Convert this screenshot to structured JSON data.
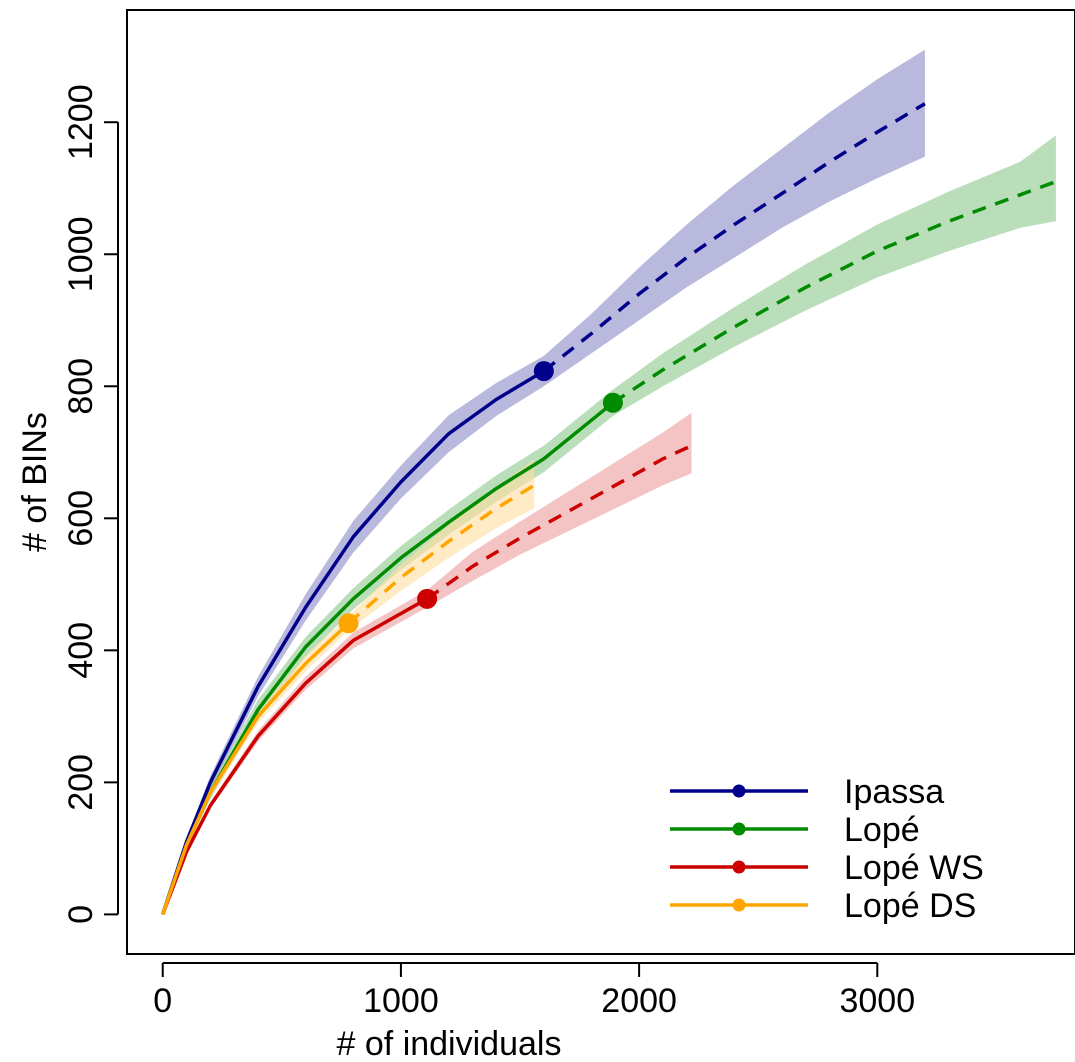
{
  "chart_data": {
    "type": "line",
    "title": "",
    "xlabel": "# of individuals",
    "ylabel": "# of BINs",
    "xlim": [
      -150,
      3830
    ],
    "ylim": [
      -60,
      1370
    ],
    "xticks": [
      0,
      1000,
      2000,
      3000
    ],
    "yticks": [
      0,
      200,
      400,
      600,
      800,
      1000,
      1200
    ],
    "grid": false,
    "legend_position": "bottom-right",
    "series": [
      {
        "name": "Ipassa",
        "color": "#00008B",
        "band_color": "#8B8BC8",
        "observed": {
          "x": 1600,
          "y": 823
        },
        "curve": {
          "x": [
            0,
            100,
            200,
            400,
            600,
            800,
            1000,
            1200,
            1400,
            1600,
            1800,
            2000,
            2200,
            2400,
            2600,
            2800,
            3000,
            3200
          ],
          "y": [
            0,
            110,
            200,
            345,
            465,
            572,
            655,
            728,
            780,
            823,
            880,
            940,
            995,
            1045,
            1092,
            1140,
            1185,
            1228
          ]
        },
        "band_lower": [
          0,
          105,
          190,
          330,
          445,
          548,
          630,
          700,
          755,
          800,
          850,
          900,
          950,
          995,
          1040,
          1080,
          1115,
          1148
        ],
        "band_upper": [
          0,
          115,
          210,
          360,
          485,
          596,
          680,
          756,
          805,
          846,
          910,
          980,
          1045,
          1105,
          1160,
          1215,
          1265,
          1310
        ]
      },
      {
        "name": "Lopé",
        "color": "#008B00",
        "band_color": "#8BC88B",
        "observed": {
          "x": 1890,
          "y": 775
        },
        "curve": {
          "x": [
            0,
            100,
            200,
            400,
            600,
            800,
            1000,
            1200,
            1400,
            1600,
            1890,
            2100,
            2400,
            2700,
            3000,
            3300,
            3600,
            3750
          ],
          "y": [
            0,
            105,
            185,
            310,
            405,
            478,
            540,
            594,
            645,
            690,
            775,
            825,
            890,
            950,
            1005,
            1050,
            1090,
            1110
          ]
        },
        "band_lower": [
          0,
          100,
          175,
          295,
          390,
          462,
          522,
          575,
          625,
          670,
          755,
          800,
          860,
          915,
          965,
          1005,
          1040,
          1050
        ],
        "band_upper": [
          0,
          110,
          195,
          325,
          420,
          494,
          558,
          613,
          665,
          710,
          795,
          850,
          920,
          985,
          1045,
          1095,
          1140,
          1180
        ]
      },
      {
        "name": "Lopé WS",
        "color": "#CC0000",
        "band_color": "#ED9C9C",
        "observed": {
          "x": 1110,
          "y": 478
        },
        "curve": {
          "x": [
            0,
            100,
            200,
            400,
            600,
            800,
            1110,
            1300,
            1500,
            1700,
            1900,
            2100,
            2220
          ],
          "y": [
            0,
            95,
            165,
            270,
            350,
            415,
            478,
            527,
            570,
            610,
            650,
            690,
            710
          ]
        },
        "band_lower": [
          0,
          92,
          160,
          262,
          340,
          403,
          465,
          505,
          545,
          580,
          615,
          650,
          668
        ],
        "band_upper": [
          0,
          98,
          170,
          278,
          360,
          427,
          491,
          549,
          595,
          640,
          685,
          730,
          760
        ]
      },
      {
        "name": "Lopé DS",
        "color": "#FFA500",
        "band_color": "#FFDEA0",
        "observed": {
          "x": 780,
          "y": 441
        },
        "curve": {
          "x": [
            0,
            100,
            200,
            400,
            600,
            780,
            1000,
            1200,
            1400,
            1560
          ],
          "y": [
            0,
            105,
            185,
            300,
            380,
            441,
            510,
            565,
            615,
            650
          ]
        },
        "band_lower": [
          0,
          100,
          178,
          290,
          368,
          430,
          490,
          540,
          585,
          615
        ],
        "band_upper": [
          0,
          110,
          192,
          310,
          392,
          452,
          530,
          590,
          645,
          690
        ]
      }
    ]
  }
}
